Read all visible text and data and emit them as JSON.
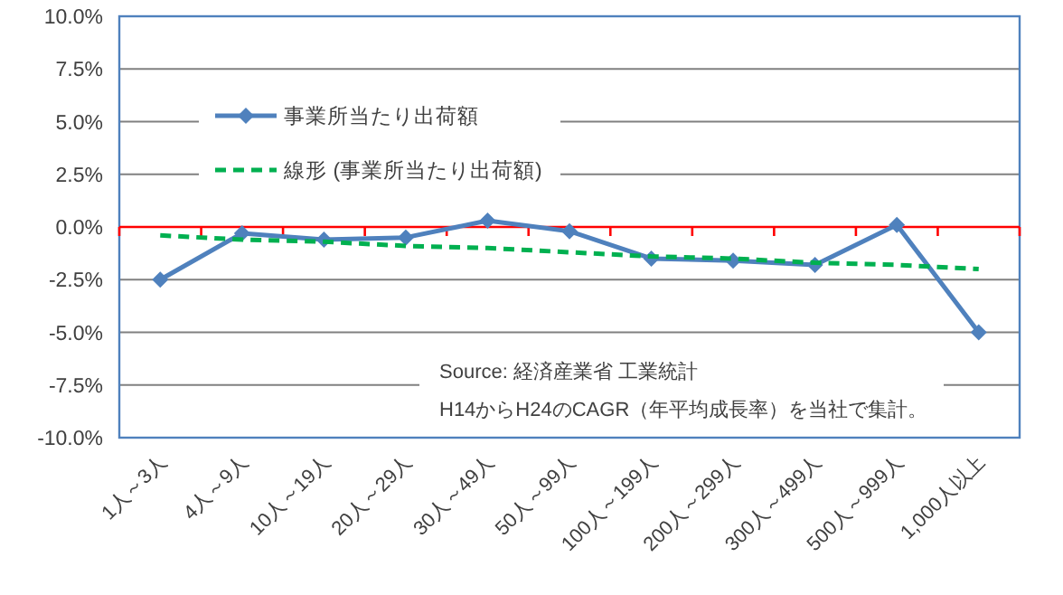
{
  "chart_data": {
    "type": "line",
    "categories": [
      "1人～3人",
      "4人～9人",
      "10人～19人",
      "20人～29人",
      "30人～49人",
      "50人～99人",
      "100人～199人",
      "200人～299人",
      "300人～499人",
      "500人～999人",
      "1,000人以上"
    ],
    "series": [
      {
        "name": "事業所当たり出荷額",
        "color": "#4f81bd",
        "marker": "diamond",
        "line_style": "solid",
        "values": [
          -2.5,
          -0.3,
          -0.6,
          -0.5,
          0.3,
          -0.2,
          -1.5,
          -1.6,
          -1.8,
          0.1,
          -5.0
        ]
      },
      {
        "name": "線形 (事業所当たり出荷額)",
        "color": "#00b050",
        "marker": "none",
        "line_style": "dashed",
        "values": [
          -0.4,
          -0.6,
          -0.7,
          -0.9,
          -1.0,
          -1.2,
          -1.4,
          -1.5,
          -1.7,
          -1.8,
          -2.0
        ]
      }
    ],
    "ylim": [
      -10,
      10
    ],
    "yticks": [
      {
        "value": -10,
        "label": "-10.0%"
      },
      {
        "value": -7.5,
        "label": "-7.5%"
      },
      {
        "value": -5,
        "label": "-5.0%"
      },
      {
        "value": -2.5,
        "label": "-2.5%"
      },
      {
        "value": 0,
        "label": "0.0%"
      },
      {
        "value": 2.5,
        "label": "2.5%"
      },
      {
        "value": 5,
        "label": "5.0%"
      },
      {
        "value": 7.5,
        "label": "7.5%"
      },
      {
        "value": 10,
        "label": "10.0%"
      }
    ],
    "grid": "y",
    "legend": "top left",
    "ref_lines": [
      {
        "axis": "y",
        "value": 0,
        "color": "#ff0000"
      }
    ],
    "annotations": [
      "Source: 経済産業省 工業統計",
      "H14からH24のCAGR（年平均成長率）を当社で集計。"
    ]
  }
}
